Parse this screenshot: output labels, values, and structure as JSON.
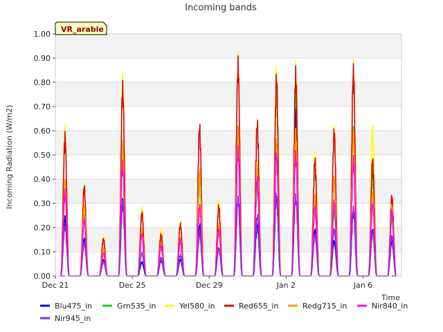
{
  "chart_data": {
    "type": "line",
    "title": "Incoming bands",
    "xlabel": "Time",
    "ylabel": "Incoming Radiation (W/m2)",
    "badge": "VR_arable",
    "ylim": [
      0,
      1.0
    ],
    "xlim": [
      "2023-12-21",
      "2024-01-08"
    ],
    "yticks": [
      "0.00",
      "0.10",
      "0.20",
      "0.30",
      "0.40",
      "0.50",
      "0.60",
      "0.70",
      "0.80",
      "0.90",
      "1.00"
    ],
    "xticks": [
      {
        "date": "2023-12-21",
        "label": "Dec 21"
      },
      {
        "date": "2023-12-25",
        "label": "Dec 25"
      },
      {
        "date": "2023-12-29",
        "label": "Dec 29"
      },
      {
        "date": "2024-01-02",
        "label": "Jan 2"
      },
      {
        "date": "2024-01-06",
        "label": "Jan 6"
      }
    ],
    "grid": true,
    "legend_position": "bottom",
    "days": [
      "2023-12-21",
      "2023-12-22",
      "2023-12-23",
      "2023-12-24",
      "2023-12-25",
      "2023-12-26",
      "2023-12-27",
      "2023-12-28",
      "2023-12-29",
      "2023-12-30",
      "2023-12-31",
      "2024-01-01",
      "2024-01-02",
      "2024-01-03",
      "2024-01-04",
      "2024-01-05",
      "2024-01-06",
      "2024-01-07"
    ],
    "series": [
      {
        "name": "Blu475_in",
        "color": "#0000dd",
        "peaks": [
          0.25,
          0.16,
          0.07,
          0.32,
          0.06,
          0.07,
          0.07,
          0.22,
          0.12,
          0.33,
          0.22,
          0.34,
          0.7,
          0.2,
          0.15,
          0.28,
          0.2,
          0.15
        ]
      },
      {
        "name": "Grn535_in",
        "color": "#00dd00",
        "peaks": [
          0.38,
          0.26,
          0.12,
          0.5,
          0.2,
          0.14,
          0.15,
          0.4,
          0.22,
          0.62,
          0.4,
          0.8,
          0.8,
          0.32,
          0.28,
          0.62,
          0.45,
          0.25
        ]
      },
      {
        "name": "Yel580_in",
        "color": "#ffff00",
        "peaks": [
          0.63,
          0.39,
          0.17,
          0.84,
          0.29,
          0.2,
          0.23,
          0.45,
          0.32,
          0.93,
          0.49,
          0.88,
          0.89,
          0.53,
          0.63,
          0.9,
          0.64,
          0.34
        ]
      },
      {
        "name": "Red655_in",
        "color": "#dd0000",
        "peaks": [
          0.6,
          0.38,
          0.16,
          0.81,
          0.27,
          0.18,
          0.22,
          0.64,
          0.3,
          0.91,
          0.66,
          0.85,
          0.87,
          0.5,
          0.62,
          0.88,
          0.5,
          0.34
        ]
      },
      {
        "name": "Redg715_in",
        "color": "#ff9900",
        "peaks": [
          0.4,
          0.3,
          0.12,
          0.56,
          0.2,
          0.14,
          0.16,
          0.45,
          0.22,
          0.62,
          0.47,
          0.58,
          0.61,
          0.35,
          0.42,
          0.6,
          0.36,
          0.3
        ]
      },
      {
        "name": "Nir840_in",
        "color": "#ff00ff",
        "peaks": [
          0.36,
          0.24,
          0.1,
          0.48,
          0.18,
          0.13,
          0.15,
          0.3,
          0.2,
          0.54,
          0.42,
          0.52,
          0.52,
          0.3,
          0.32,
          0.5,
          0.31,
          0.28
        ]
      },
      {
        "name": "Nir945_in",
        "color": "#8a2be2",
        "peaks": [
          0.22,
          0.14,
          0.06,
          0.31,
          0.1,
          0.08,
          0.09,
          0.18,
          0.12,
          0.33,
          0.26,
          0.35,
          0.34,
          0.18,
          0.2,
          0.29,
          0.19,
          0.17
        ]
      }
    ]
  }
}
